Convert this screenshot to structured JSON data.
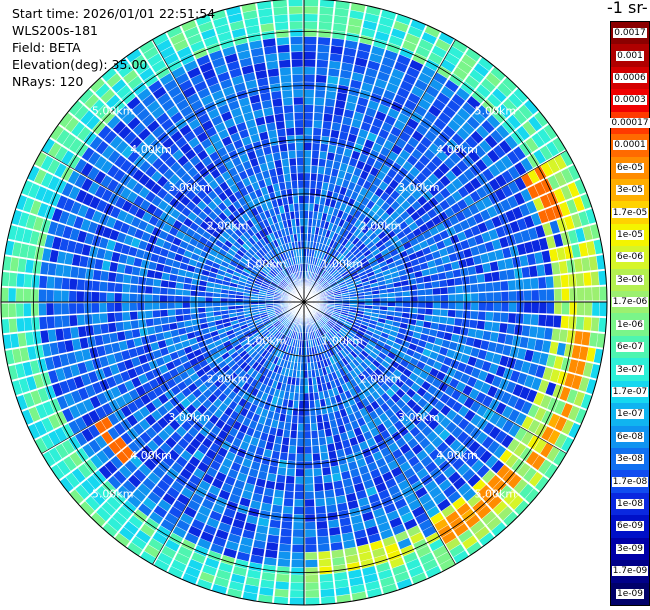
{
  "info": {
    "start_time": "Start time: 2026/01/01 22:51:54",
    "instrument": "WLS200s-181",
    "field": "Field: BETA",
    "elevation": "Elevation(deg): 35.00",
    "nrays": "NRays: 120"
  },
  "colorbar": {
    "title": "-1 sr-",
    "labels": [
      "0.0017",
      "0.001",
      "0.0006",
      "0.0003",
      "0.00017",
      "0.0001",
      "6e-05",
      "3e-05",
      "1.7e-05",
      "1e-05",
      "6e-06",
      "3e-06",
      "1.7e-06",
      "1e-06",
      "6e-07",
      "3e-07",
      "1.7e-07",
      "1e-07",
      "6e-08",
      "3e-08",
      "1.7e-08",
      "1e-08",
      "6e-09",
      "3e-09",
      "1.7e-09",
      "1e-09"
    ],
    "colors": [
      "#8b0000",
      "#b00000",
      "#d40000",
      "#f00000",
      "#ff3a00",
      "#ff6a00",
      "#ff8c00",
      "#ffae00",
      "#ffd200",
      "#f4f400",
      "#d6f528",
      "#b4f050",
      "#9cf070",
      "#7af58a",
      "#4ef5b0",
      "#2ef0d8",
      "#16d8f0",
      "#10b4f0",
      "#1094f0",
      "#1070f0",
      "#104cf0",
      "#0a28e0",
      "#0010c8",
      "#0000a8",
      "#000088",
      "#00006a"
    ]
  },
  "chart_data": {
    "type": "heatmap",
    "subtype": "PPI polar scan",
    "field": "BETA",
    "elevation_deg": 35.0,
    "nrays": 120,
    "max_range_km": 5.6,
    "range_rings_km": [
      1,
      2,
      3,
      4,
      5
    ],
    "range_labels": [
      "1.00km",
      "2.00km",
      "3.00km",
      "4.00km",
      "5.00km"
    ],
    "color_scale": "log",
    "value_range": [
      1e-09,
      0.0017
    ],
    "dominant_value": 3e-08,
    "high_value_arcs": [
      {
        "azimuth_deg": [
          60,
          180
        ],
        "range_km": [
          4.6,
          5.5
        ],
        "value_range": [
          1e-06,
          1e-05
        ]
      },
      {
        "azimuth_deg": [
          95,
          125
        ],
        "range_km": [
          5.0,
          5.3
        ],
        "value_range": [
          3e-05,
          6e-05
        ]
      },
      {
        "azimuth_deg": [
          130,
          150
        ],
        "range_km": [
          4.8,
          5.2
        ],
        "value_range": [
          3e-05,
          6e-05
        ]
      },
      {
        "azimuth_deg": [
          60,
          72
        ],
        "range_km": [
          4.6,
          5.0
        ],
        "value_range": [
          6e-05,
          0.0001
        ]
      },
      {
        "azimuth_deg": [
          228,
          240
        ],
        "range_km": [
          4.2,
          4.5
        ],
        "value_range": [
          6e-05,
          0.0001
        ]
      },
      {
        "azimuth_deg": [
          150,
          220
        ],
        "range_km": [
          5.0,
          5.5
        ],
        "value_range": [
          1.7e-07,
          1e-06
        ]
      }
    ],
    "grid": true
  }
}
